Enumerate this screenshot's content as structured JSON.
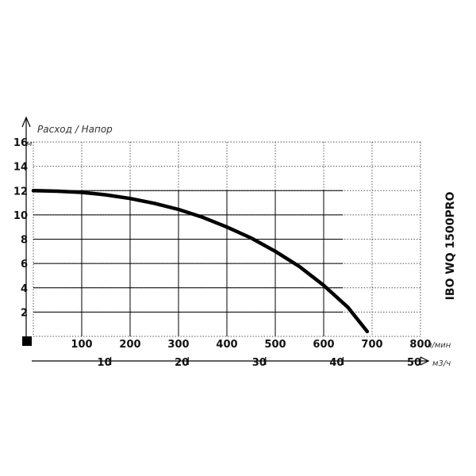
{
  "chart_data": {
    "type": "line",
    "title": "Расход / Напор",
    "model": "IBO WQ 1500PRO",
    "y_unit": "м",
    "x_unit": "л/мин",
    "x2_unit": "м3/ч",
    "ylim": [
      0,
      16
    ],
    "xlim": [
      0,
      800
    ],
    "x2lim": [
      0,
      50
    ],
    "y_ticks": [
      "16",
      "14",
      "12",
      "10",
      "8",
      "6",
      "4",
      "2"
    ],
    "x_ticks": [
      "100",
      "200",
      "300",
      "400",
      "500",
      "600",
      "700",
      "800"
    ],
    "x2_ticks": [
      "10",
      "20",
      "30",
      "40",
      "50"
    ],
    "grid": true,
    "series": [
      {
        "x": [
          0,
          50,
          100,
          150,
          200,
          250,
          300,
          350,
          400,
          450,
          500,
          550,
          600,
          650,
          690
        ],
        "y": [
          12.0,
          11.95,
          11.85,
          11.65,
          11.35,
          10.95,
          10.45,
          9.8,
          9.0,
          8.1,
          7.0,
          5.75,
          4.2,
          2.4,
          0.4
        ]
      }
    ]
  }
}
